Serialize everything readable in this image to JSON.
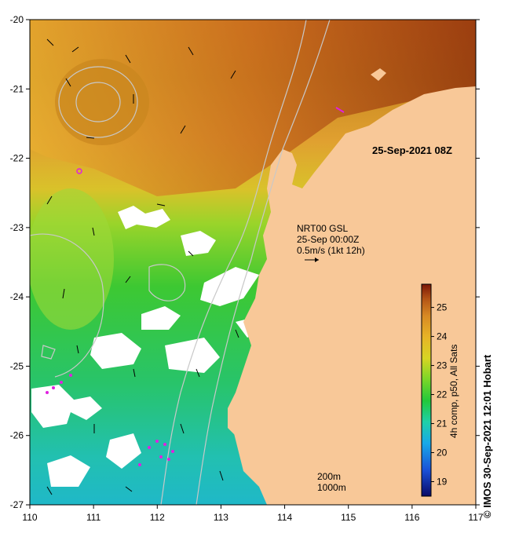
{
  "map": {
    "timestamp": "25-Sep-2021 08Z",
    "product_lines": [
      "NRT00 GSL",
      "25-Sep 00:00Z",
      "0.5m/s (1kt 12h)"
    ],
    "depth_contours": [
      "200m",
      "1000m"
    ],
    "credit": "© IMOS 30-Sep-2021 12:01 Hobart",
    "colorbar": {
      "label": "4h comp, p50, All Sats",
      "ticks": [
        "25",
        "24",
        "23",
        "22",
        "21",
        "20",
        "19"
      ],
      "range": [
        18.5,
        25.8
      ],
      "colors": [
        "#0a0a66",
        "#1a4fd6",
        "#18a9e8",
        "#1fd0a8",
        "#22c83a",
        "#7ad628",
        "#d7d523",
        "#e7b427",
        "#d88a24",
        "#b45516",
        "#7c1606"
      ]
    },
    "x_ticks": [
      "110",
      "111",
      "112",
      "113",
      "114",
      "115",
      "116",
      "117"
    ],
    "y_ticks": [
      "-20",
      "-21",
      "-22",
      "-23",
      "-24",
      "-25",
      "-26",
      "-27"
    ],
    "colors": {
      "land": "#f8c898",
      "clouds": "#ffffff",
      "contours": "#c8c8c8",
      "markers": "#e020e0"
    }
  }
}
